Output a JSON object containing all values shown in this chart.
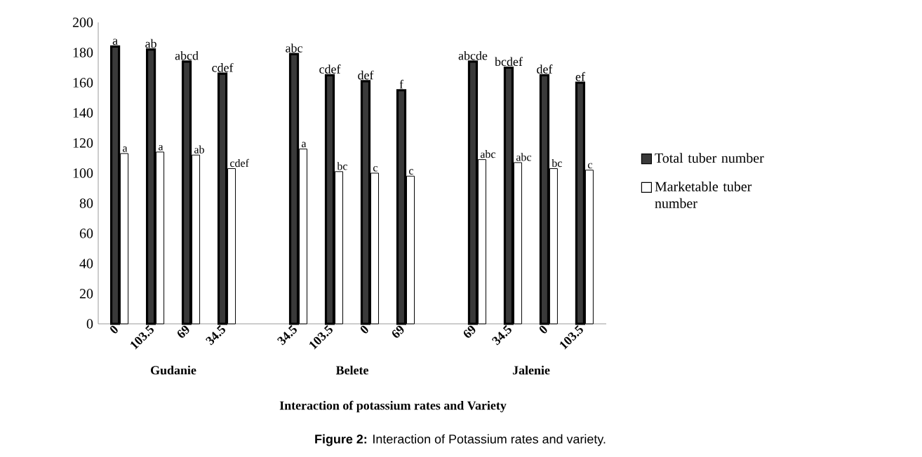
{
  "chart_data": {
    "type": "bar",
    "xlabel": "Interaction of potassium rates and Variety",
    "categories": [
      "0",
      "103.5",
      "69",
      "34.5",
      null,
      "34.5",
      "103.5",
      "0",
      "69",
      null,
      "69",
      "34.5",
      "0",
      "103.5"
    ],
    "series": [
      {
        "name": "Total tuber number",
        "color": "#3a3a3a",
        "values": [
          184,
          182,
          174,
          166,
          null,
          179,
          165,
          161,
          155,
          null,
          174,
          170,
          165,
          160
        ],
        "value_labels": [
          "a",
          "ab",
          "abcd",
          "cdef",
          null,
          "abc",
          "cdef",
          "def",
          "f",
          null,
          "abcde",
          "bcdef",
          "def",
          "ef"
        ]
      },
      {
        "name": "Marketable tuber number",
        "color": "#ffffff",
        "values": [
          113,
          114,
          112,
          103,
          null,
          116,
          101,
          100,
          98,
          null,
          109,
          107,
          103,
          102
        ],
        "value_labels": [
          "a",
          "a",
          "ab",
          "cdef",
          null,
          "a",
          "bc",
          "c",
          "c",
          null,
          "abc",
          "abc",
          "bc",
          "c"
        ]
      }
    ],
    "ylim": [
      0,
      200
    ],
    "yticks": [
      0,
      20,
      40,
      60,
      80,
      100,
      120,
      140,
      160,
      180,
      200
    ],
    "legend": "right",
    "annotations": [
      "Gudanie",
      "Belete",
      "Jalenie",
      "**Figure 2:** Interaction of Potassium rates and variety."
    ]
  }
}
